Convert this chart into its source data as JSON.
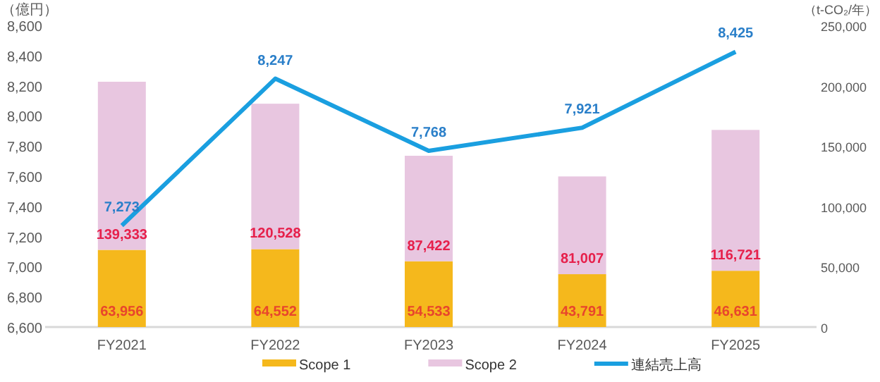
{
  "chart_data": {
    "type": "bar",
    "stacked": true,
    "categories": [
      "FY2021",
      "FY2022",
      "FY2023",
      "FY2024",
      "FY2025"
    ],
    "ylabel": "（億円）",
    "y2label": "（t-CO₂/年）",
    "ylim": [
      6600,
      8600
    ],
    "yticks": [
      {
        "value": 6600,
        "label": "6,600"
      },
      {
        "value": 6800,
        "label": "6,800"
      },
      {
        "value": 7000,
        "label": "7,000"
      },
      {
        "value": 7200,
        "label": "7,200"
      },
      {
        "value": 7400,
        "label": "7,400"
      },
      {
        "value": 7600,
        "label": "7,600"
      },
      {
        "value": 7800,
        "label": "7,800"
      },
      {
        "value": 8000,
        "label": "8,000"
      },
      {
        "value": 8200,
        "label": "8,200"
      },
      {
        "value": 8400,
        "label": "8,400"
      },
      {
        "value": 8600,
        "label": "8,600"
      }
    ],
    "y2lim": [
      0,
      250000
    ],
    "y2ticks": [
      0,
      {
        "value": 50000,
        "label": "50,000"
      },
      {
        "value": 100000,
        "label": "100,000"
      },
      {
        "value": 150000,
        "label": "150,000"
      },
      {
        "value": 200000,
        "label": "200,000"
      },
      {
        "value": 250000,
        "label": "250,000"
      }
    ],
    "legend": "bottom",
    "series": [
      {
        "name": "Scope 1",
        "color": "#f5b81c",
        "axis": "y2",
        "values": [
          63956,
          64552,
          54533,
          43791,
          46631
        ],
        "value_labels": [
          "63,956",
          "64,552",
          "54,533",
          "43,791",
          "46,631"
        ]
      },
      {
        "name": "Scope 2",
        "color": "#e8c6e0",
        "axis": "y2",
        "values": [
          139333,
          120528,
          87422,
          81007,
          116721
        ],
        "value_labels": [
          "139,333",
          "120,528",
          "87,422",
          "81,007",
          "116,721"
        ]
      },
      {
        "name": "連結売上高",
        "type": "line",
        "axis": "y",
        "color": "#1a9fe0",
        "values": [
          7273,
          8247,
          7768,
          7921,
          8425
        ],
        "value_labels": [
          "7,273",
          "8,247",
          "7,768",
          "7,921",
          "8,425"
        ]
      }
    ]
  }
}
